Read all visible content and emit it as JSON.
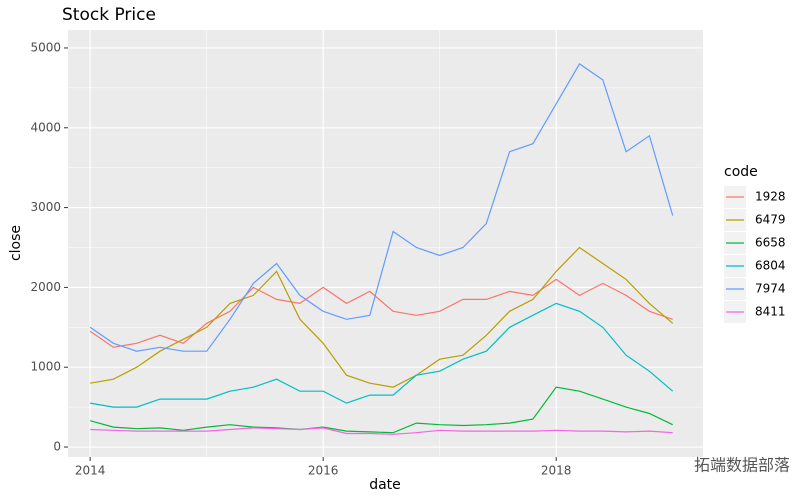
{
  "chart_data": {
    "type": "line",
    "title": "Stock Price",
    "x_label": "date",
    "y_label": "close",
    "legend_title": "code",
    "watermark": "拓端数据部落",
    "x": [
      2014.0,
      2014.2,
      2014.4,
      2014.6,
      2014.8,
      2015.0,
      2015.2,
      2015.4,
      2015.6,
      2015.8,
      2016.0,
      2016.2,
      2016.4,
      2016.6,
      2016.8,
      2017.0,
      2017.2,
      2017.4,
      2017.6,
      2017.8,
      2018.0,
      2018.2,
      2018.4,
      2018.6,
      2018.8,
      2019.0
    ],
    "xlim": [
      2013.81,
      2019.26
    ],
    "xticks": [
      2014,
      2016,
      2018
    ],
    "ylim": [
      -125,
      5225
    ],
    "yticks": [
      0,
      1000,
      2000,
      3000,
      4000,
      5000
    ],
    "grid": true,
    "series": [
      {
        "name": "1928",
        "color": "#F8766D",
        "values": [
          1450,
          1250,
          1300,
          1400,
          1300,
          1550,
          1700,
          2000,
          1850,
          1800,
          2000,
          1800,
          1950,
          1700,
          1650,
          1700,
          1850,
          1850,
          1950,
          1900,
          2100,
          1900,
          2050,
          1900,
          1700,
          1600
        ]
      },
      {
        "name": "6479",
        "color": "#B79F00",
        "values": [
          800,
          850,
          1000,
          1200,
          1350,
          1500,
          1800,
          1900,
          2200,
          1600,
          1300,
          900,
          800,
          750,
          900,
          1100,
          1150,
          1400,
          1700,
          1850,
          2200,
          2500,
          2300,
          2100,
          1800,
          1550
        ]
      },
      {
        "name": "6658",
        "color": "#00BA38",
        "values": [
          330,
          250,
          230,
          240,
          210,
          250,
          280,
          250,
          240,
          220,
          250,
          200,
          190,
          180,
          300,
          280,
          270,
          280,
          300,
          350,
          750,
          700,
          600,
          500,
          420,
          280
        ]
      },
      {
        "name": "6804",
        "color": "#00BFC4",
        "values": [
          550,
          500,
          500,
          600,
          600,
          600,
          700,
          750,
          850,
          700,
          700,
          550,
          650,
          650,
          900,
          950,
          1100,
          1200,
          1500,
          1650,
          1800,
          1700,
          1500,
          1150,
          950,
          700
        ]
      },
      {
        "name": "7974",
        "color": "#619CFF",
        "values": [
          1500,
          1300,
          1200,
          1250,
          1200,
          1200,
          1600,
          2050,
          2300,
          1900,
          1700,
          1600,
          1650,
          2700,
          2500,
          2400,
          2500,
          2800,
          3700,
          3800,
          4300,
          4800,
          4600,
          3700,
          3900,
          2900
        ]
      },
      {
        "name": "8411",
        "color": "#F564E3",
        "values": [
          220,
          210,
          200,
          200,
          200,
          200,
          220,
          240,
          230,
          220,
          240,
          170,
          170,
          160,
          180,
          210,
          200,
          200,
          200,
          200,
          210,
          200,
          200,
          190,
          200,
          180
        ]
      }
    ]
  }
}
